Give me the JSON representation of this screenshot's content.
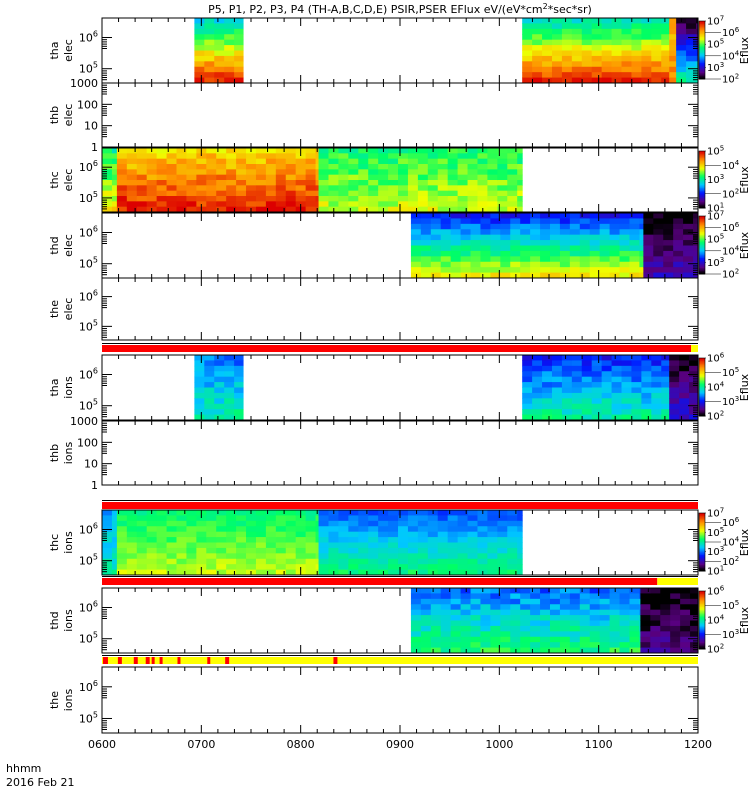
{
  "chart_data": {
    "type": "heatmap",
    "title": "P5, P1, P2, P3, P4 (TH-A,B,C,D,E) PSIR,PSER EFlux eV/(eV*cm",
    "title_sup": "2",
    "title_tail": "*sec*sr)",
    "xlabel_lines": [
      "hhmm",
      "2016 Feb 21"
    ],
    "xlim": [
      6,
      12
    ],
    "x_ticks": [
      {
        "value": 6,
        "label": "0600"
      },
      {
        "value": 7,
        "label": "0700"
      },
      {
        "value": 8,
        "label": "0800"
      },
      {
        "value": 9,
        "label": "0900"
      },
      {
        "value": 10,
        "label": "1000"
      },
      {
        "value": 11,
        "label": "1100"
      },
      {
        "value": 12,
        "label": "1200"
      }
    ],
    "colorbar_label": "Eflux",
    "panels": [
      {
        "label": [
          "tha",
          "elec"
        ],
        "yticks": [
          {
            "base": "10",
            "exp": "6"
          },
          {
            "base": "10",
            "exp": "5"
          }
        ],
        "log_ticks": true,
        "colorbar": {
          "range": [
            2,
            7
          ],
          "ticks": [
            "7",
            "6",
            "5",
            "4",
            "3",
            "2"
          ]
        },
        "segments": [
          {
            "t0": 6.93,
            "t1": 7.42,
            "top": 4.2,
            "bottom": 6.8
          },
          {
            "t0": 10.23,
            "t1": 11.71,
            "top": 4.3,
            "bottom": 6.8
          },
          {
            "t0": 11.71,
            "t1": 11.78,
            "top": 6.0,
            "bottom": 6.2
          },
          {
            "t0": 11.78,
            "t1": 12.0,
            "top": 2.1,
            "bottom": 4.6
          }
        ]
      },
      {
        "label": [
          "thb",
          "elec"
        ],
        "yticks": [
          {
            "base": "1000"
          },
          {
            "base": "100"
          },
          {
            "base": "10"
          },
          {
            "base": "1"
          }
        ],
        "log_ticks": false,
        "segments": []
      },
      {
        "label": [
          "thc",
          "elec"
        ],
        "yticks": [
          {
            "base": "10",
            "exp": "6"
          },
          {
            "base": "10",
            "exp": "5"
          }
        ],
        "log_ticks": true,
        "colorbar": {
          "range": [
            1,
            5
          ],
          "ticks": [
            "5",
            "4",
            "3",
            "2",
            "1"
          ]
        },
        "segments": [
          {
            "t0": 6.0,
            "t1": 6.15,
            "top": 3.1,
            "bottom": 3.9
          },
          {
            "t0": 6.15,
            "t1": 8.18,
            "top": 4.0,
            "bottom": 4.9
          },
          {
            "t0": 8.18,
            "t1": 10.23,
            "top": 3.2,
            "bottom": 3.7
          }
        ]
      },
      {
        "label": [
          "thd",
          "elec"
        ],
        "yticks": [
          {
            "base": "10",
            "exp": "6"
          },
          {
            "base": "10",
            "exp": "5"
          }
        ],
        "log_ticks": true,
        "colorbar": {
          "range": [
            2,
            7
          ],
          "ticks": [
            "7",
            "6",
            "5",
            "4",
            "3",
            "2"
          ]
        },
        "segments": [
          {
            "t0": 9.11,
            "t1": 11.45,
            "top": 3.2,
            "bottom": 5.6
          },
          {
            "t0": 11.45,
            "t1": 12.0,
            "top": 2.0,
            "bottom": 2.8
          }
        ]
      },
      {
        "label": [
          "the",
          "elec"
        ],
        "yticks": [
          {
            "base": "10",
            "exp": "6"
          },
          {
            "base": "10",
            "exp": "5"
          }
        ],
        "log_ticks": true,
        "segments": []
      },
      {
        "label": [
          "tha",
          "ions"
        ],
        "yticks": [
          {
            "base": "10",
            "exp": "6"
          },
          {
            "base": "10",
            "exp": "5"
          }
        ],
        "log_ticks": true,
        "colorbar": {
          "range": [
            2,
            6
          ],
          "ticks": [
            "6",
            "5",
            "4",
            "3",
            "2"
          ]
        },
        "segments": [
          {
            "t0": 6.93,
            "t1": 7.42,
            "top": 3.3,
            "bottom": 4.0
          },
          {
            "t0": 10.23,
            "t1": 11.71,
            "top": 3.0,
            "bottom": 4.0
          },
          {
            "t0": 11.71,
            "t1": 12.0,
            "top": 2.0,
            "bottom": 2.8
          }
        ]
      },
      {
        "label": [
          "thb",
          "ions"
        ],
        "yticks": [
          {
            "base": "1000"
          },
          {
            "base": "100"
          },
          {
            "base": "10"
          },
          {
            "base": "1"
          }
        ],
        "log_ticks": false,
        "segments": []
      },
      {
        "label": [
          "thc",
          "ions"
        ],
        "yticks": [
          {
            "base": "10",
            "exp": "6"
          },
          {
            "base": "10",
            "exp": "5"
          }
        ],
        "log_ticks": true,
        "colorbar": {
          "range": [
            1,
            7
          ],
          "ticks": [
            "7",
            "6",
            "5",
            "4",
            "3",
            "2",
            "1"
          ]
        },
        "segments": [
          {
            "t0": 6.0,
            "t1": 6.15,
            "top": 3.2,
            "bottom": 3.9
          },
          {
            "t0": 6.15,
            "t1": 8.18,
            "top": 4.2,
            "bottom": 5.0
          },
          {
            "t0": 8.18,
            "t1": 10.23,
            "top": 2.8,
            "bottom": 4.2
          }
        ]
      },
      {
        "label": [
          "thd",
          "ions"
        ],
        "yticks": [
          {
            "base": "10",
            "exp": "6"
          },
          {
            "base": "10",
            "exp": "5"
          }
        ],
        "log_ticks": true,
        "colorbar": {
          "range": [
            2,
            6
          ],
          "ticks": [
            "6",
            "5",
            "4",
            "3",
            "2"
          ]
        },
        "segments": [
          {
            "t0": 9.11,
            "t1": 11.42,
            "top": 3.3,
            "bottom": 4.2
          },
          {
            "t0": 11.42,
            "t1": 12.0,
            "top": 2.0,
            "bottom": 2.4
          }
        ]
      },
      {
        "label": [
          "the",
          "ions"
        ],
        "yticks": [
          {
            "base": "10",
            "exp": "6"
          },
          {
            "base": "10",
            "exp": "5"
          }
        ],
        "log_ticks": true,
        "segments": []
      }
    ],
    "status_bars": [
      {
        "after_panel": 4,
        "spans": [
          {
            "t0": 6.0,
            "t1": 11.93,
            "color": "#ff0000"
          },
          {
            "t0": 11.93,
            "t1": 12.0,
            "color": "#ffff00"
          }
        ]
      },
      {
        "after_panel": 6,
        "spans": [
          {
            "t0": 6.0,
            "t1": 12.0,
            "color": "#ff0000"
          }
        ]
      },
      {
        "after_panel": 7,
        "spans": [
          {
            "t0": 6.0,
            "t1": 11.59,
            "color": "#ff0000"
          },
          {
            "t0": 11.59,
            "t1": 12.0,
            "color": "#ffff00"
          }
        ]
      },
      {
        "after_panel": 8,
        "spans": [
          {
            "t0": 6.0,
            "t1": 12.0,
            "color": "#ffff00"
          },
          {
            "t0": 6.01,
            "t1": 6.06,
            "color": "#ff0000"
          },
          {
            "t0": 6.16,
            "t1": 6.2,
            "color": "#ff0000"
          },
          {
            "t0": 6.32,
            "t1": 6.36,
            "color": "#ff0000"
          },
          {
            "t0": 6.44,
            "t1": 6.48,
            "color": "#ff0000"
          },
          {
            "t0": 6.5,
            "t1": 6.53,
            "color": "#ff0000"
          },
          {
            "t0": 6.58,
            "t1": 6.61,
            "color": "#ff0000"
          },
          {
            "t0": 6.76,
            "t1": 6.79,
            "color": "#ff0000"
          },
          {
            "t0": 7.06,
            "t1": 7.09,
            "color": "#ff0000"
          },
          {
            "t0": 7.24,
            "t1": 7.28,
            "color": "#ff0000"
          },
          {
            "t0": 8.33,
            "t1": 8.37,
            "color": "#ff0000"
          }
        ]
      }
    ]
  }
}
